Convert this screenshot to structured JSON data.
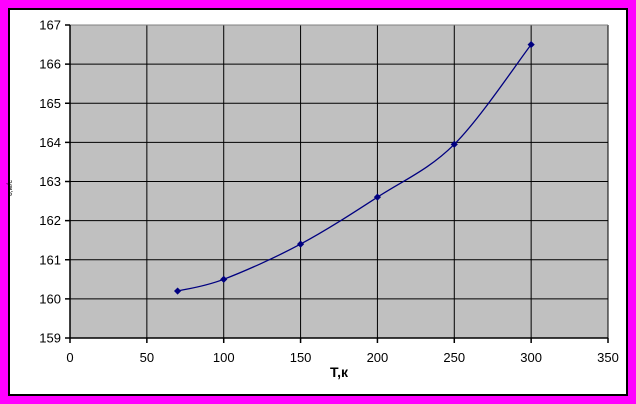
{
  "colors": {
    "frame_border": "#FF00FF",
    "chart_outline": "#000000",
    "chart_background": "#FFFFFF",
    "plot_background": "#C0C0C0",
    "plot_top_border": "#808080",
    "gridline": "#000000",
    "axis": "#000000",
    "series": "#000080",
    "text": "#000000"
  },
  "chart_data": {
    "type": "line",
    "title": "",
    "x": [
      70,
      100,
      150,
      200,
      250,
      300
    ],
    "y": [
      160.2,
      160.5,
      161.4,
      162.6,
      163.95,
      166.5
    ],
    "xlabel": "Т,к",
    "ylabel": "υ,м/с",
    "xlim": [
      0,
      350
    ],
    "ylim": [
      159,
      167
    ],
    "xticks": [
      0,
      50,
      100,
      150,
      200,
      250,
      300,
      350
    ],
    "yticks": [
      159,
      160,
      161,
      162,
      163,
      164,
      165,
      166,
      167
    ],
    "grid": true,
    "legend_position": "none",
    "marker": "diamond",
    "line_style": "smooth"
  }
}
